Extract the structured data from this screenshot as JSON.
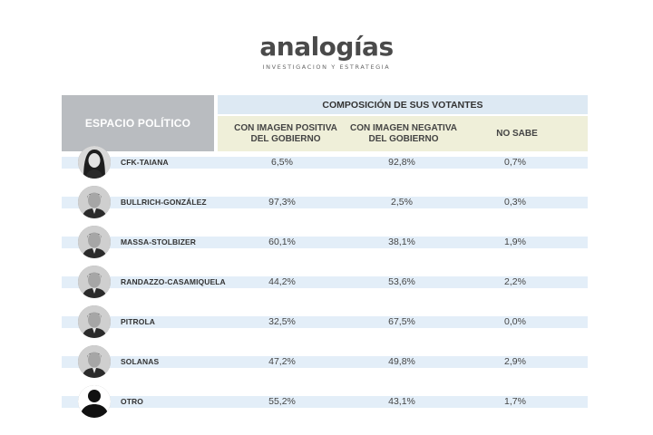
{
  "logo": {
    "name": "analogías",
    "tagline": "INVESTIGACION Y ESTRATEGIA"
  },
  "table": {
    "left_header": "ESPACIO POLÍTICO",
    "group_header": "COMPOSICIÓN DE SUS VOTANTES",
    "columns": [
      "CON IMAGEN POSITIVA\nDEL GOBIERNO",
      "CON IMAGEN NEGATIVA\nDEL GOBIERNO",
      "NO SABE"
    ],
    "rows": [
      {
        "name": "CFK-TAIANA",
        "avatar": "woman-portrait",
        "values": [
          "6,5%",
          "92,8%",
          "0,7%"
        ]
      },
      {
        "name": "BULLRICH-GONZÁLEZ",
        "avatar": "man-portrait",
        "values": [
          "97,3%",
          "2,5%",
          "0,3%"
        ]
      },
      {
        "name": "MASSA-STOLBIZER",
        "avatar": "man-portrait",
        "values": [
          "60,1%",
          "38,1%",
          "1,9%"
        ]
      },
      {
        "name": "RANDAZZO-CASAMIQUELA",
        "avatar": "man-portrait",
        "values": [
          "44,2%",
          "53,6%",
          "2,2%"
        ]
      },
      {
        "name": "PITROLA",
        "avatar": "man-portrait",
        "values": [
          "32,5%",
          "67,5%",
          "0,0%"
        ]
      },
      {
        "name": "SOLANAS",
        "avatar": "man-portrait",
        "values": [
          "47,2%",
          "49,8%",
          "2,9%"
        ]
      },
      {
        "name": "OTRO",
        "avatar": "person-silhouette",
        "values": [
          "55,2%",
          "43,1%",
          "1,7%"
        ]
      }
    ]
  },
  "colors": {
    "left_header_bg": "#b9bcc0",
    "group_header_bg": "#dde9f3",
    "column_header_bg": "#efefd9",
    "row_band_bg": "#e3eef8"
  }
}
